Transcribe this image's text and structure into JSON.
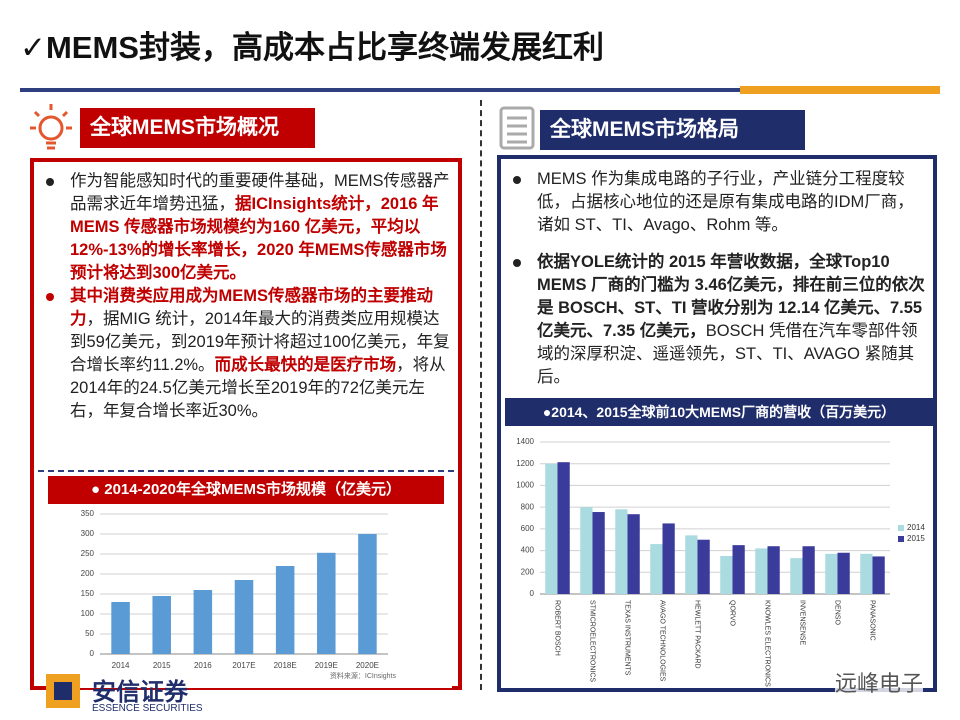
{
  "header": {
    "title": "✓MEMS封装，高成本占比享终端发展红利"
  },
  "left_panel": {
    "heading": "全球MEMS市场概况",
    "bullets": [
      {
        "bullet_color": "#222222",
        "segments": [
          {
            "text": "作为智能感知时代的重要硬件基础，MEMS传感器产品需求近年增势迅猛，",
            "style": "normal"
          },
          {
            "text": "据ICInsights统计，2016 年MEMS 传感器市场规模约为160 亿美元，平均以12%-13%的增长率增长，2020 年MEMS传感器市场预计将达到300亿美元。",
            "style": "red"
          }
        ]
      },
      {
        "bullet_color": "#c00000",
        "segments": [
          {
            "text": "其中消费类应用成为MEMS传感器市场的主要推动力",
            "style": "red"
          },
          {
            "text": "，据MIG 统计，2014年最大的消费类应用规模达到59亿美元，到2019年预计将超过100亿美元，年复合增长率约11.2%。",
            "style": "normal"
          },
          {
            "text": "而成长最快的是医疗市场",
            "style": "red"
          },
          {
            "text": "，将从2014年的24.5亿美元增长至2019年的72亿美元左右，年复合增长率近30%。",
            "style": "normal"
          }
        ]
      }
    ]
  },
  "right_panel": {
    "heading": "全球MEMS市场格局",
    "bullets": [
      {
        "bullet_color": "#222222",
        "segments": [
          {
            "text": "MEMS 作为集成电路的子行业，产业链分工程度较低，占据核心地位的还是原有集成电路的IDM厂商，诸如 ST、TI、Avago、Rohm 等。",
            "style": "normal"
          }
        ]
      },
      {
        "bullet_color": "#222222",
        "segments": [
          {
            "text": "依据YOLE统计的 2015 年营收数据，全球Top10 MEMS 厂商的门槛为 3.46亿美元，排在前三位的依次是 BOSCH、ST、TI 营收分别为 12.14 亿美元、7.55 亿美元、7.35 亿美元，",
            "style": "bold"
          },
          {
            "text": "BOSCH 凭借在汽车零部件领域的深厚积淀、遥遥领先，ST、TI、AVAGO 紧随其后。",
            "style": "normal"
          }
        ]
      }
    ]
  },
  "chart_data": [
    {
      "type": "bar",
      "title": "●  2014-2020年全球MEMS市场规模（亿美元）",
      "categories": [
        "2014",
        "2015",
        "2016",
        "2017E",
        "2018E",
        "2019E",
        "2020E"
      ],
      "values": [
        130,
        145,
        160,
        185,
        220,
        253,
        300
      ],
      "color": "#5b9bd5",
      "ylim": [
        0,
        350
      ],
      "yticks": [
        0,
        50,
        100,
        150,
        200,
        250,
        300,
        350
      ],
      "grid": true,
      "source": "资料来源：ICInsights"
    },
    {
      "type": "bar",
      "title": "●2014、2015全球前10大MEMS厂商的营收（百万美元）",
      "categories": [
        "ROBERT BOSCH",
        "STMICROELECTRONICS",
        "TEXAS INSTRUMENTS",
        "AVAGO TECHNOLOGIES",
        "HEWLETT PACKARD",
        "QORVO",
        "KNOWLES ELECTRONICS",
        "INVENSENSE",
        "DENSO",
        "PANASONIC"
      ],
      "series": [
        {
          "name": "2014",
          "color": "#a9dbe0",
          "values": [
            1200,
            800,
            780,
            460,
            540,
            350,
            420,
            330,
            370,
            370
          ]
        },
        {
          "name": "2015",
          "color": "#3b3b9c",
          "values": [
            1214,
            755,
            735,
            650,
            500,
            450,
            440,
            440,
            380,
            346
          ]
        }
      ],
      "ylim": [
        0,
        1400
      ],
      "yticks": [
        0,
        200,
        400,
        600,
        800,
        1000,
        1200,
        1400
      ],
      "grid": true,
      "legend": "right"
    }
  ],
  "footer": {
    "logo_name": "安信证券",
    "logo_english": "ESSENCE SECURITIES",
    "watermark": "远峰电子"
  }
}
